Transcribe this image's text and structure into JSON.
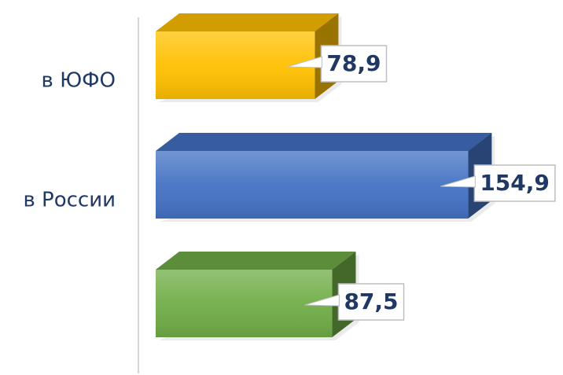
{
  "chart_data": {
    "type": "bar",
    "orientation": "horizontal",
    "categories": [
      "в ЮФО",
      "в России",
      null
    ],
    "values": [
      78.9,
      154.9,
      87.5
    ],
    "value_labels": [
      "78,9",
      "154,9",
      "87,5"
    ],
    "colors": [
      "#ffc000",
      "#4472c4",
      "#70ad47"
    ]
  }
}
